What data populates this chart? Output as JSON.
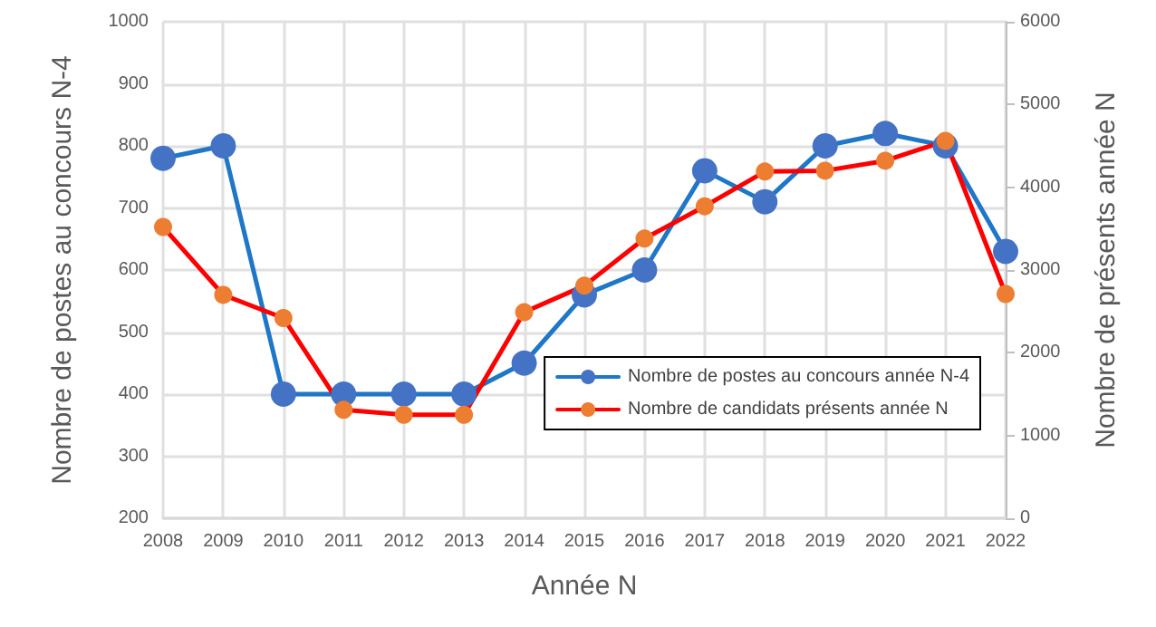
{
  "chart_data": {
    "type": "line",
    "xlabel": "Année N",
    "ylabel": "Nombre de postes au concours N-4",
    "y2label": "Nombre de présents année N",
    "categories": [
      "2008",
      "2009",
      "2010",
      "2011",
      "2012",
      "2013",
      "2014",
      "2015",
      "2016",
      "2017",
      "2018",
      "2019",
      "2020",
      "2021",
      "2022"
    ],
    "series": [
      {
        "name": "Nombre de postes au concours année N-4",
        "color": "#1f77c8",
        "values": [
          780,
          800,
          400,
          400,
          400,
          400,
          450,
          560,
          600,
          760,
          710,
          800,
          820,
          800,
          630
        ]
      },
      {
        "name": "Nombre de candidats présents année N",
        "color": "#ff0000",
        "axis": "y2",
        "values": [
          3520,
          2700,
          2420,
          1310,
          1250,
          1250,
          2490,
          2810,
          3380,
          3770,
          4190,
          4200,
          4320,
          4560,
          2710
        ]
      }
    ],
    "ylim": [
      200,
      1000
    ],
    "yticks": [
      200,
      300,
      400,
      500,
      600,
      700,
      800,
      900,
      1000
    ],
    "y2lim": [
      0,
      6000
    ],
    "y2ticks": [
      0,
      1000,
      2000,
      3000,
      4000,
      5000,
      6000
    ],
    "grid": true,
    "legend": "right",
    "marker": "circle",
    "line_style": "solid"
  }
}
